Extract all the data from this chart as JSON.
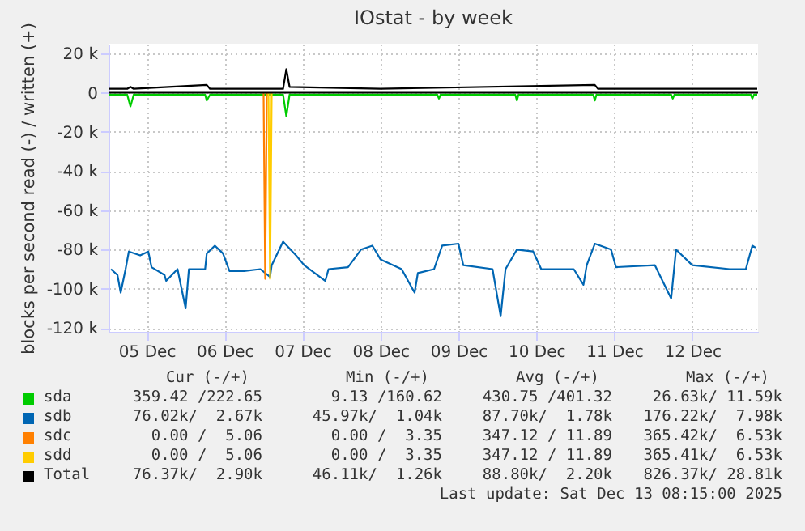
{
  "chart_data": {
    "type": "line",
    "title": "IOstat - by week",
    "ylabel": "blocks per second read (-) / written (+)",
    "xlim": [
      "2025-12-05T00:15",
      "2025-12-13T08:15"
    ],
    "xticks": [
      {
        "value": "2025-12-05T12:00",
        "label": "05 Dec"
      },
      {
        "value": "2025-12-06T12:00",
        "label": "06 Dec"
      },
      {
        "value": "2025-12-07T12:00",
        "label": "07 Dec"
      },
      {
        "value": "2025-12-08T12:00",
        "label": "08 Dec"
      },
      {
        "value": "2025-12-09T12:00",
        "label": "09 Dec"
      },
      {
        "value": "2025-12-10T12:00",
        "label": "10 Dec"
      },
      {
        "value": "2025-12-11T12:00",
        "label": "11 Dec"
      },
      {
        "value": "2025-12-12T12:00",
        "label": "12 Dec"
      }
    ],
    "ylim": [
      -122000,
      25000
    ],
    "yticks": [
      {
        "value": 20000,
        "label": "20 k"
      },
      0,
      {
        "value": -20000,
        "label": "-20 k"
      },
      {
        "value": -40000,
        "label": "-40 k"
      },
      {
        "value": -60000,
        "label": "-60 k"
      },
      {
        "value": -80000,
        "label": "-80 k"
      },
      {
        "value": -100000,
        "label": "-100 k"
      },
      {
        "value": -120000,
        "label": "-120 k"
      }
    ],
    "grid": true,
    "legend": "bottom",
    "ref_lines": [
      {
        "axis": "y",
        "value": 0,
        "color": "#000000"
      }
    ],
    "series": [
      {
        "name": "sda",
        "color": "#00cc00",
        "x": [
          "2025-12-05T00:30",
          "2025-12-05T06:00",
          "2025-12-05T07:00",
          "2025-12-05T08:00",
          "2025-12-06T06:00",
          "2025-12-06T06:30",
          "2025-12-06T07:30",
          "2025-12-07T06:00",
          "2025-12-07T07:00",
          "2025-12-07T08:00",
          "2025-12-09T05:30",
          "2025-12-09T06:00",
          "2025-12-09T06:30",
          "2025-12-10T05:30",
          "2025-12-10T06:00",
          "2025-12-10T06:30",
          "2025-12-11T05:30",
          "2025-12-11T06:00",
          "2025-12-11T06:30",
          "2025-12-12T05:30",
          "2025-12-12T06:00",
          "2025-12-12T06:30",
          "2025-12-13T06:00",
          "2025-12-13T06:30",
          "2025-12-13T07:00",
          "2025-12-13T08:00"
        ],
        "values": [
          -1000,
          -1000,
          -7000,
          -1000,
          -1000,
          -4000,
          -1000,
          -1000,
          -12000,
          -1000,
          -1000,
          -3000,
          -1000,
          -1000,
          -4000,
          -1000,
          -1000,
          -4000,
          -1000,
          -1000,
          -3000,
          -1000,
          -1000,
          -3000,
          -1000,
          -1000
        ]
      },
      {
        "name": "sdb",
        "color": "#0066b3",
        "x": [
          "2025-12-05T01:00",
          "2025-12-05T03:00",
          "2025-12-05T04:00",
          "2025-12-05T05:30",
          "2025-12-05T06:30",
          "2025-12-05T10:00",
          "2025-12-05T12:30",
          "2025-12-05T13:30",
          "2025-12-05T17:30",
          "2025-12-05T18:00",
          "2025-12-05T21:30",
          "2025-12-06T00:00",
          "2025-12-06T01:00",
          "2025-12-06T06:00",
          "2025-12-06T06:30",
          "2025-12-06T09:00",
          "2025-12-06T11:30",
          "2025-12-06T13:30",
          "2025-12-06T18:00",
          "2025-12-06T23:00",
          "2025-12-07T02:00",
          "2025-12-07T02:30",
          "2025-12-07T06:00",
          "2025-12-07T10:00",
          "2025-12-07T12:30",
          "2025-12-07T19:00",
          "2025-12-07T20:00",
          "2025-12-08T02:00",
          "2025-12-08T06:00",
          "2025-12-08T09:30",
          "2025-12-08T12:00",
          "2025-12-08T18:30",
          "2025-12-08T22:30",
          "2025-12-08T23:30",
          "2025-12-09T04:30",
          "2025-12-09T07:00",
          "2025-12-09T12:00",
          "2025-12-09T13:30",
          "2025-12-09T22:30",
          "2025-12-10T01:00",
          "2025-12-10T02:30",
          "2025-12-10T06:00",
          "2025-12-10T11:00",
          "2025-12-10T13:30",
          "2025-12-10T23:30",
          "2025-12-11T02:30",
          "2025-12-11T03:30",
          "2025-12-11T06:00",
          "2025-12-11T11:00",
          "2025-12-11T12:30",
          "2025-12-12T00:30",
          "2025-12-12T05:30",
          "2025-12-12T07:00",
          "2025-12-12T12:00",
          "2025-12-12T23:30",
          "2025-12-13T04:30",
          "2025-12-13T06:30",
          "2025-12-13T07:30"
        ],
        "values": [
          -90000,
          -93000,
          -102000,
          -90000,
          -81000,
          -83000,
          -81000,
          -89000,
          -93000,
          -96000,
          -90000,
          -110000,
          -90000,
          -90000,
          -82000,
          -78000,
          -82000,
          -91000,
          -91000,
          -90000,
          -94000,
          -88000,
          -76000,
          -83000,
          -88000,
          -96000,
          -90000,
          -89000,
          -80000,
          -78000,
          -85000,
          -90000,
          -102000,
          -92000,
          -90000,
          -78000,
          -77000,
          -88000,
          -90000,
          -114000,
          -90000,
          -80000,
          -81000,
          -90000,
          -90000,
          -98000,
          -88000,
          -77000,
          -80000,
          -89000,
          -88000,
          -105000,
          -80000,
          -88000,
          -90000,
          -90000,
          -78000,
          -79000
        ]
      },
      {
        "name": "sdc",
        "color": "#ff8000",
        "x": [
          "2025-12-07T00:00",
          "2025-12-07T00:30",
          "2025-12-07T01:00"
        ],
        "values": [
          0,
          -95000,
          0
        ]
      },
      {
        "name": "sdd",
        "color": "#ffcc00",
        "x": [
          "2025-12-07T01:30",
          "2025-12-07T02:00",
          "2025-12-07T02:30"
        ],
        "values": [
          0,
          -95000,
          0
        ]
      },
      {
        "name": "Total",
        "color": "#000000",
        "x": [
          "2025-12-05T00:30",
          "2025-12-05T06:00",
          "2025-12-05T07:00",
          "2025-12-05T08:00",
          "2025-12-06T06:30",
          "2025-12-06T07:30",
          "2025-12-07T06:00",
          "2025-12-07T07:00",
          "2025-12-07T08:00",
          "2025-12-08T12:00",
          "2025-12-11T06:00",
          "2025-12-11T07:00",
          "2025-12-13T08:00"
        ],
        "values": [
          2000,
          2000,
          3000,
          2000,
          4000,
          2000,
          2000,
          12000,
          3000,
          2000,
          4000,
          2000,
          2000
        ]
      }
    ],
    "annotations": [
      "Cur (-/+)",
      "Min (-/+)",
      "Avg (-/+)",
      "Max (-/+)",
      "359.42 /222.65",
      "9.13 /160.62",
      "430.75 /401.32",
      "26.63k/ 11.59k",
      "76.02k/  2.67k",
      "45.97k/  1.04k",
      "87.70k/  1.78k",
      "176.22k/  7.98k",
      "0.00 /  5.06",
      "0.00 /  3.35",
      "347.12 / 11.89",
      "365.42k/  6.53k",
      "0.00 /  5.06",
      "0.00 /  3.35",
      "347.12 / 11.89",
      "365.41k/  6.53k",
      "76.37k/  2.90k",
      "46.11k/  1.26k",
      "88.80k/  2.20k",
      "826.37k/ 28.81k",
      "Last update: Sat Dec 13 08:15:00 2025"
    ]
  }
}
